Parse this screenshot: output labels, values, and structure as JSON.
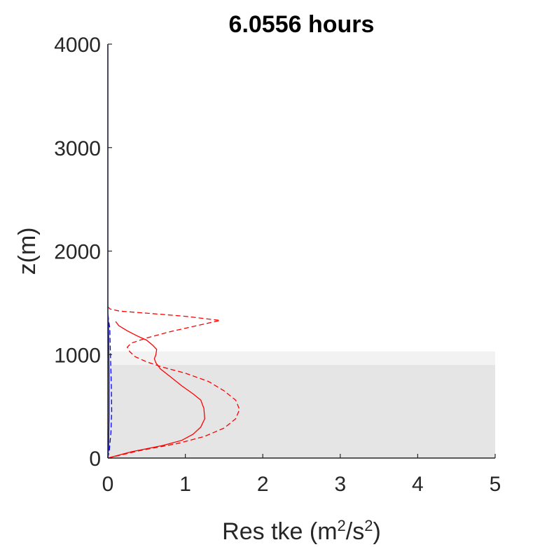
{
  "chart_data": {
    "type": "line",
    "title": "6.0556 hours",
    "xlabel_base": "Res tke (m",
    "xlabel_sup1": "2",
    "xlabel_mid": "/s",
    "xlabel_sup2": "2",
    "xlabel_end": ")",
    "ylabel": "z(m)",
    "xlim": [
      0,
      5
    ],
    "ylim": [
      0,
      4000
    ],
    "xticks": [
      0,
      1,
      2,
      3,
      4,
      5
    ],
    "yticks": [
      0,
      1000,
      2000,
      3000,
      4000
    ],
    "xtick_labels": [
      "0",
      "1",
      "2",
      "3",
      "4",
      "5"
    ],
    "ytick_labels": [
      "0",
      "1000",
      "2000",
      "3000",
      "4000"
    ],
    "shaded_bands": [
      {
        "y0": 0,
        "y1": 900,
        "x0": 0,
        "x1": 5,
        "color": "#e5e5e5"
      },
      {
        "y0": 900,
        "y1": 1030,
        "x0": 0,
        "x1": 5,
        "color": "#f2f2f2"
      }
    ],
    "series": [
      {
        "name": "red-solid",
        "color": "#ff0000",
        "dash": "solid",
        "points": [
          [
            0,
            0
          ],
          [
            0.3,
            60
          ],
          [
            0.7,
            120
          ],
          [
            0.95,
            170
          ],
          [
            1.1,
            230
          ],
          [
            1.2,
            300
          ],
          [
            1.25,
            380
          ],
          [
            1.24,
            480
          ],
          [
            1.2,
            560
          ],
          [
            1.1,
            620
          ],
          [
            0.95,
            700
          ],
          [
            0.8,
            790
          ],
          [
            0.68,
            860
          ],
          [
            0.62,
            920
          ],
          [
            0.6,
            960
          ],
          [
            0.62,
            1000
          ],
          [
            0.63,
            1050
          ],
          [
            0.58,
            1090
          ],
          [
            0.5,
            1140
          ],
          [
            0.38,
            1180
          ],
          [
            0.25,
            1230
          ],
          [
            0.14,
            1280
          ],
          [
            0.1,
            1320
          ]
        ]
      },
      {
        "name": "red-dashed",
        "color": "#ff0000",
        "dash": "dashed",
        "points": [
          [
            0,
            0
          ],
          [
            0.4,
            70
          ],
          [
            0.9,
            140
          ],
          [
            1.25,
            210
          ],
          [
            1.5,
            290
          ],
          [
            1.65,
            380
          ],
          [
            1.7,
            470
          ],
          [
            1.65,
            560
          ],
          [
            1.5,
            650
          ],
          [
            1.3,
            740
          ],
          [
            1.0,
            820
          ],
          [
            0.7,
            880
          ],
          [
            0.5,
            930
          ],
          [
            0.35,
            980
          ],
          [
            0.28,
            1030
          ],
          [
            0.25,
            1070
          ],
          [
            0.3,
            1110
          ],
          [
            0.5,
            1160
          ],
          [
            0.8,
            1220
          ],
          [
            1.15,
            1280
          ],
          [
            1.45,
            1330
          ],
          [
            1.0,
            1370
          ],
          [
            0.5,
            1400
          ],
          [
            0.15,
            1420
          ],
          [
            0.03,
            1440
          ],
          [
            0,
            1460
          ]
        ]
      },
      {
        "name": "blue-solid",
        "color": "#0000ff",
        "dash": "solid",
        "points": [
          [
            0,
            0
          ],
          [
            0.01,
            100
          ],
          [
            0.015,
            400
          ],
          [
            0.015,
            800
          ],
          [
            0.012,
            1100
          ],
          [
            0.008,
            1300
          ],
          [
            0,
            1400
          ],
          [
            0,
            4000
          ]
        ]
      },
      {
        "name": "blue-dashed",
        "color": "#0000ff",
        "dash": "dashed",
        "points": [
          [
            0,
            0
          ],
          [
            0.02,
            80
          ],
          [
            0.04,
            250
          ],
          [
            0.05,
            450
          ],
          [
            0.045,
            700
          ],
          [
            0.035,
            950
          ],
          [
            0.03,
            1100
          ],
          [
            0.025,
            1250
          ],
          [
            0.01,
            1330
          ],
          [
            0,
            1400
          ]
        ]
      }
    ]
  }
}
